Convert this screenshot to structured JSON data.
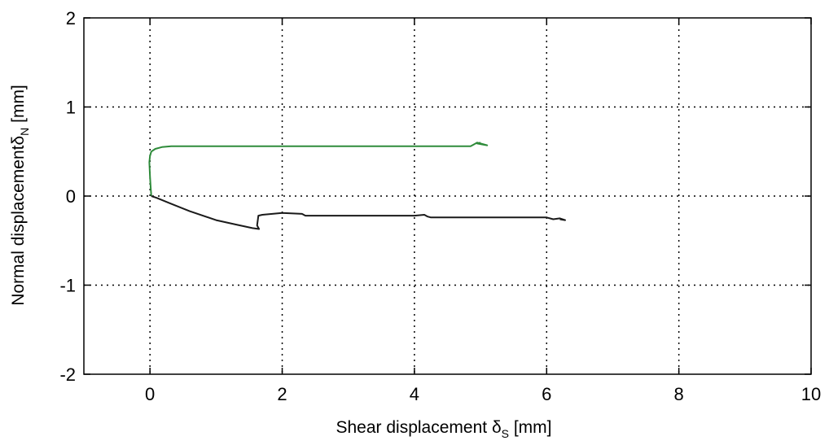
{
  "chart_data": {
    "type": "line",
    "title": "",
    "xlabel": "Shear displacement δ",
    "xlabel_sub": "S",
    "xlabel_unit": " [mm]",
    "ylabel": "Normal displacement",
    "ylabel_greek": "δ",
    "ylabel_sub": "N",
    "ylabel_unit": " [mm]",
    "xlim": [
      -1,
      10
    ],
    "ylim": [
      -2,
      2
    ],
    "xticks": [
      0,
      2,
      4,
      6,
      8,
      10
    ],
    "yticks": [
      -2,
      -1,
      0,
      1,
      2
    ],
    "xtick_labels": [
      "0",
      "2",
      "4",
      "6",
      "8",
      "10"
    ],
    "ytick_labels": [
      "-2",
      "-1",
      "0",
      "1",
      "2"
    ],
    "grid": true,
    "series": [
      {
        "color": "#2e8b3a",
        "x": [
          0.02,
          0.01,
          0.0,
          -0.01,
          0.0,
          0.02,
          0.08,
          0.18,
          0.32,
          0.6,
          1.5,
          3.0,
          4.5,
          4.85,
          4.9,
          4.95,
          5.0,
          5.05,
          5.1,
          4.95,
          5.0
        ],
        "y": [
          0.0,
          0.1,
          0.22,
          0.38,
          0.45,
          0.5,
          0.53,
          0.55,
          0.56,
          0.56,
          0.56,
          0.56,
          0.56,
          0.56,
          0.58,
          0.6,
          0.59,
          0.58,
          0.57,
          0.59,
          0.6
        ]
      },
      {
        "color": "#1a1a1a",
        "x": [
          0.02,
          0.1,
          0.3,
          0.6,
          1.0,
          1.3,
          1.55,
          1.65,
          1.62,
          1.64,
          1.7,
          1.85,
          2.0,
          2.3,
          2.35,
          2.4,
          3.0,
          4.0,
          4.15,
          4.2,
          4.25,
          5.0,
          6.0,
          6.1,
          6.2,
          6.28,
          6.2
        ],
        "y": [
          0.0,
          -0.02,
          -0.08,
          -0.17,
          -0.27,
          -0.32,
          -0.36,
          -0.37,
          -0.33,
          -0.22,
          -0.21,
          -0.2,
          -0.19,
          -0.2,
          -0.22,
          -0.22,
          -0.22,
          -0.22,
          -0.21,
          -0.23,
          -0.24,
          -0.24,
          -0.24,
          -0.26,
          -0.25,
          -0.27,
          -0.26
        ]
      }
    ]
  }
}
